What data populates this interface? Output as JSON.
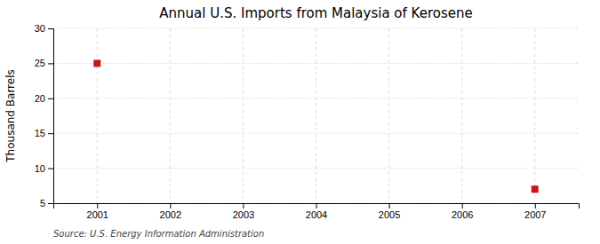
{
  "chart_data": {
    "type": "scatter",
    "title": "Annual U.S. Imports from Malaysia of Kerosene",
    "y_label": "Thousand Barrels",
    "source": "Source: U.S. Energy Information Administration",
    "x": [
      2001,
      2007
    ],
    "values": [
      25,
      7
    ],
    "color": "#cc1111",
    "marker": "square",
    "xlim": [
      2000.4,
      2007.6
    ],
    "ylim": [
      5,
      30
    ],
    "xticks": [
      2001,
      2002,
      2003,
      2004,
      2005,
      2006,
      2007
    ],
    "yticks": [
      5,
      10,
      15,
      20,
      25,
      30
    ],
    "grid": true
  }
}
